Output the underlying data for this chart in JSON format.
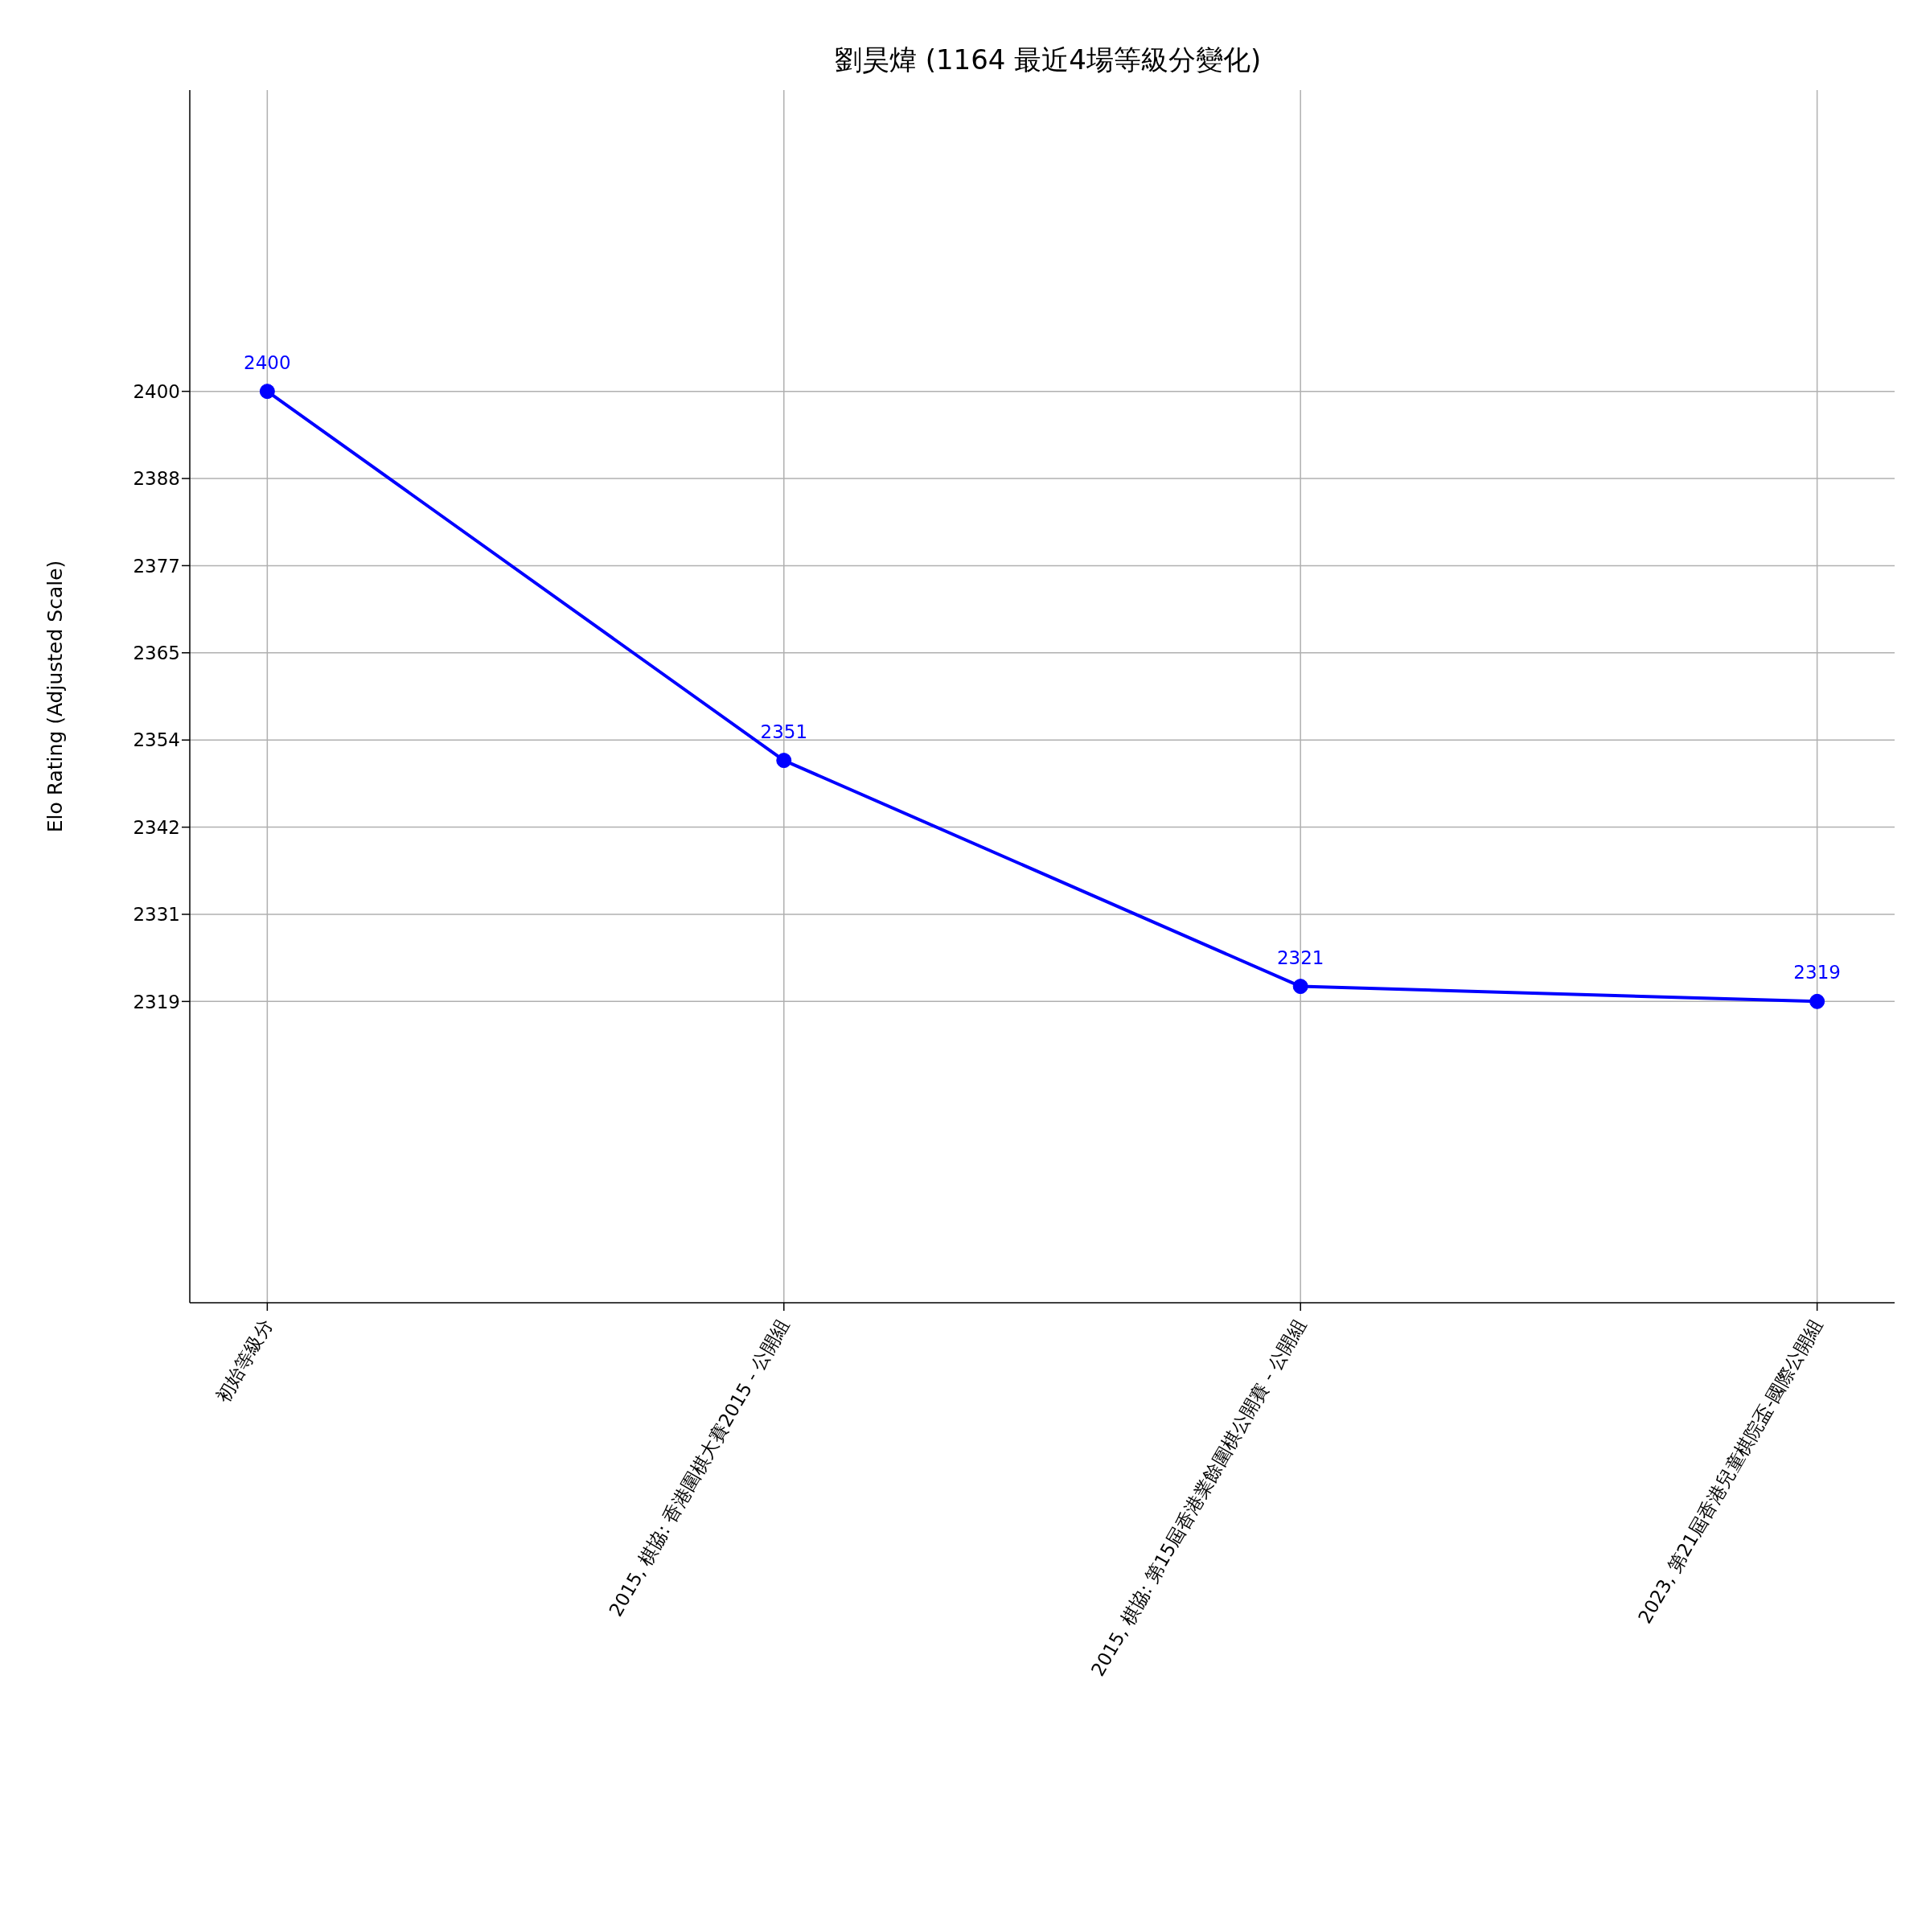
{
  "chart_data": {
    "type": "line",
    "title": "劉昊煒 (1164 最近4場等級分變化)",
    "ylabel": "Elo Rating (Adjusted Scale)",
    "categories": [
      "初始等級分",
      "2015, 棋協: 香港圍棋大賽2015 - 公開組",
      "2015, 棋協: 第15屆香港業餘圍棋公開賽 - 公開組",
      "2023, 第21屆香港兒童棋院盃-國際公開組"
    ],
    "series": [
      {
        "color": "#0000ff",
        "values": [
          2400,
          2351,
          2321,
          2319
        ]
      }
    ],
    "ylim": [
      2279,
      2440
    ],
    "yticks": [
      {
        "value": 2319,
        "label": "2319"
      },
      {
        "value": 2330.57,
        "label": "2331"
      },
      {
        "value": 2342.14,
        "label": "2342"
      },
      {
        "value": 2353.71,
        "label": "2354"
      },
      {
        "value": 2365.29,
        "label": "2365"
      },
      {
        "value": 2376.86,
        "label": "2377"
      },
      {
        "value": 2388.43,
        "label": "2388"
      },
      {
        "value": 2400,
        "label": "2400"
      }
    ],
    "grid": true,
    "marker": "circle",
    "line_style": "solid",
    "data_labels": true
  }
}
